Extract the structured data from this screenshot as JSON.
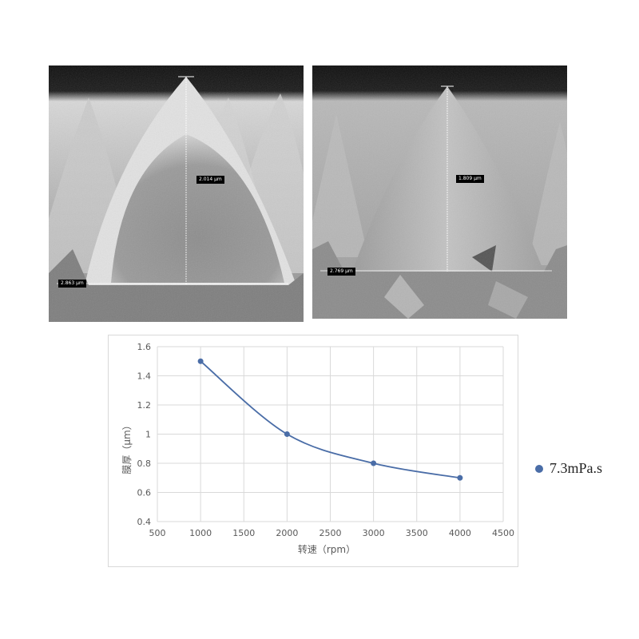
{
  "figure": {
    "left_panel": {
      "height_label": "2.014 µm",
      "width_label": "2.863 µm"
    },
    "right_panel": {
      "height_label": "1.809 µm",
      "width_label": "2.769 µm"
    }
  },
  "chart_data": {
    "type": "line",
    "x": [
      1000,
      2000,
      3000,
      4000
    ],
    "series": [
      {
        "name": "7.3mPa.s",
        "values": [
          1.5,
          1.0,
          0.8,
          0.7
        ]
      }
    ],
    "title": "",
    "xlabel": "转速（rpm）",
    "ylabel": "膜厚（µm）",
    "xlim": [
      500,
      4500
    ],
    "ylim": [
      0.4,
      1.6
    ],
    "xticks": [
      "500",
      "1000",
      "1500",
      "2000",
      "2500",
      "3000",
      "3500",
      "4000",
      "4500"
    ],
    "yticks": [
      "0.4",
      "0.6",
      "0.8",
      "1",
      "1.2",
      "1.4",
      "1.6"
    ],
    "grid": true,
    "legend_position": "right",
    "series_color": "#4a6da7"
  }
}
